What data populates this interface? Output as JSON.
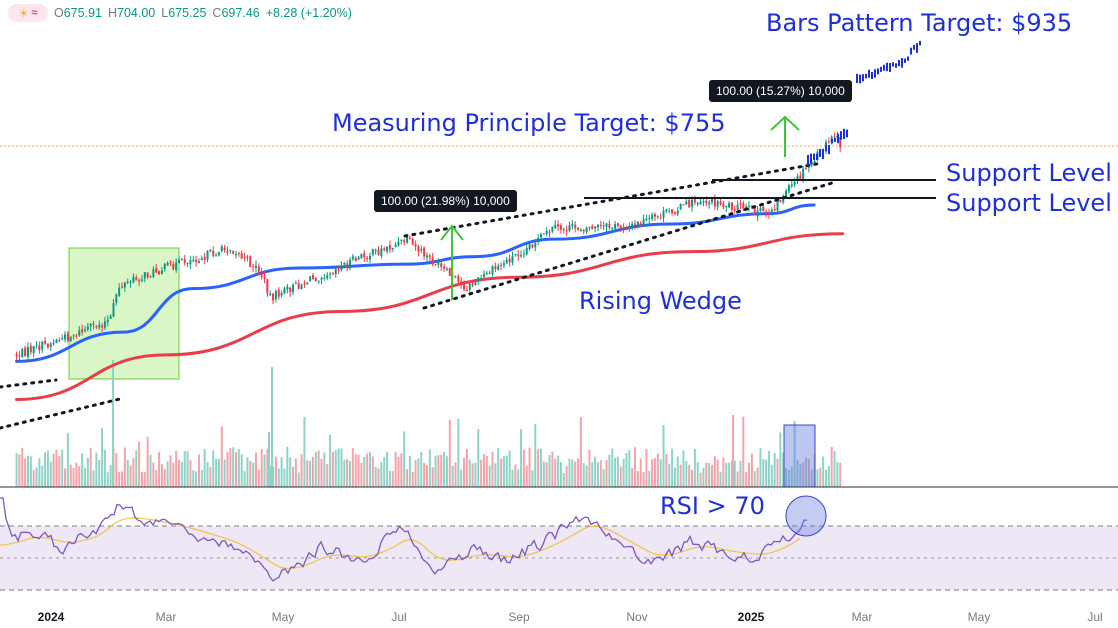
{
  "header": {
    "open_label": "O",
    "open": "675.91",
    "high_label": "H",
    "high": "704.00",
    "low_label": "L",
    "low": "675.25",
    "close_label": "C",
    "close": "697.46",
    "change": "+8.28 (+1.20%)"
  },
  "annotations": {
    "bars_target": "Bars Pattern Target: $935",
    "measuring_target": "Measuring Principle Target: $755",
    "support_1": "Support Level",
    "support_2": "Support Level",
    "rising_wedge": "Rising Wedge",
    "rsi_label": "RSI > 70",
    "measure_tag_1": "100.00 (21.98%) 10,000",
    "measure_tag_2": "100.00 (15.27%) 10,000"
  },
  "colors": {
    "up": "#089981",
    "down": "#f23645",
    "ma_fast": "#2962ff",
    "ma_slow": "#e83e4b",
    "annotation": "#1e2fd6",
    "projection": "#1e2fd6",
    "arrow": "#3cc43c",
    "rsi": "#7e57c2",
    "rsi_ma": "#f5c242"
  },
  "chart_data": {
    "type": "candlestick",
    "x_axis_labels": [
      "2024",
      "Mar",
      "May",
      "Jul",
      "Sep",
      "Nov",
      "2025",
      "Mar",
      "May",
      "Jul"
    ],
    "x_axis_bold": [
      "2024",
      "2025"
    ],
    "last_bar": {
      "open": 675.91,
      "high": 704.0,
      "low": 675.25,
      "close": 697.46,
      "change": 8.28,
      "change_pct": 1.2
    },
    "price_anchors": [
      {
        "date": "2023-12-14",
        "price": 330
      },
      {
        "date": "2024-01-15",
        "price": 370
      },
      {
        "date": "2024-02-01",
        "price": 394
      },
      {
        "date": "2024-02-05",
        "price": 455
      },
      {
        "date": "2024-02-29",
        "price": 490
      },
      {
        "date": "2024-04-04",
        "price": 527
      },
      {
        "date": "2024-04-19",
        "price": 485
      },
      {
        "date": "2024-04-25",
        "price": 436
      },
      {
        "date": "2024-06-10",
        "price": 508
      },
      {
        "date": "2024-07-05",
        "price": 540
      },
      {
        "date": "2024-08-05",
        "price": 452
      },
      {
        "date": "2024-09-20",
        "price": 562
      },
      {
        "date": "2024-10-31",
        "price": 567
      },
      {
        "date": "2024-12-06",
        "price": 616
      },
      {
        "date": "2025-01-10",
        "price": 590
      },
      {
        "date": "2025-01-24",
        "price": 647
      },
      {
        "date": "2025-02-14",
        "price": 736
      },
      {
        "date": "2025-02-18",
        "price": 697.46
      }
    ],
    "moving_averages": [
      {
        "name": "fast MA",
        "color": "#2962ff",
        "points": [
          {
            "date": "2023-12-14",
            "price": 318
          },
          {
            "date": "2024-02-08",
            "price": 372
          },
          {
            "date": "2024-03-15",
            "price": 452
          },
          {
            "date": "2024-05-10",
            "price": 490
          },
          {
            "date": "2024-07-05",
            "price": 497
          },
          {
            "date": "2024-08-10",
            "price": 511
          },
          {
            "date": "2024-09-20",
            "price": 543
          },
          {
            "date": "2024-11-20",
            "price": 571
          },
          {
            "date": "2025-01-10",
            "price": 590
          },
          {
            "date": "2025-02-03",
            "price": 606
          }
        ]
      },
      {
        "name": "slow MA",
        "color": "#e83e4b",
        "points": [
          {
            "date": "2023-12-14",
            "price": 248
          },
          {
            "date": "2024-03-01",
            "price": 330
          },
          {
            "date": "2024-06-01",
            "price": 410
          },
          {
            "date": "2024-09-01",
            "price": 473
          },
          {
            "date": "2024-12-01",
            "price": 520
          },
          {
            "date": "2025-02-18",
            "price": 553
          }
        ]
      }
    ],
    "support_levels": [
      {
        "price": 617,
        "from": "2024-12-05",
        "to": "2025-03-25"
      },
      {
        "price": 600,
        "from": "2024-09-18",
        "to": "2025-03-25"
      }
    ],
    "targets": [
      {
        "label": "Measuring Principle Target",
        "price": 755
      },
      {
        "label": "Bars Pattern Target",
        "price": 935
      }
    ],
    "measures": [
      {
        "from_price": 455,
        "to_price": 555,
        "change": 100.0,
        "change_pct": 21.98,
        "volume": 10000
      },
      {
        "from_price": 655,
        "to_price": 755,
        "change": 100.0,
        "change_pct": 15.27,
        "volume": 10000
      }
    ],
    "rsi": {
      "overbought": 70,
      "oversold": 30,
      "reading": "> 70"
    }
  }
}
